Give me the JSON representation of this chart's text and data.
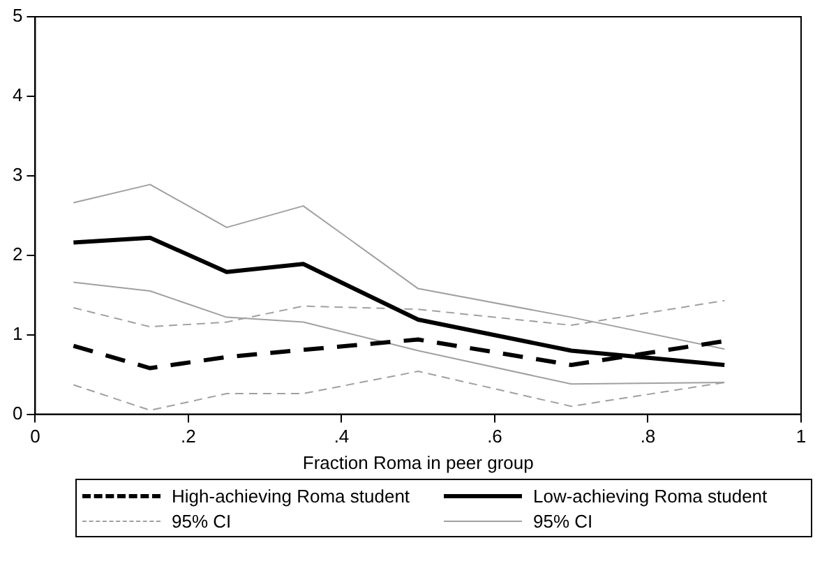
{
  "chart_data": {
    "type": "line",
    "xlabel": "Fraction Roma in peer group",
    "x": [
      0.05,
      0.15,
      0.25,
      0.35,
      0.5,
      0.7,
      0.9
    ],
    "xlim": [
      0,
      1
    ],
    "xticks": [
      0,
      {
        "value": 0.2,
        "label": ".2"
      },
      {
        "value": 0.4,
        "label": ".4"
      },
      {
        "value": 0.6,
        "label": ".6"
      },
      {
        "value": 0.8,
        "label": ".8"
      },
      1
    ],
    "ylim": [
      0,
      5
    ],
    "yticks": [
      0,
      1,
      2,
      3,
      4,
      5
    ],
    "grid": false,
    "legend": "bottom",
    "marker": "none",
    "series": [
      {
        "name": "High-achieving Roma student",
        "color": "#000000",
        "line_style": "dashed",
        "values": [
          0.86,
          0.58,
          0.72,
          0.81,
          0.94,
          0.62,
          0.92
        ]
      },
      {
        "name": "Low-achieving Roma student",
        "color": "#000000",
        "line_style": "solid",
        "values": [
          2.16,
          2.22,
          1.79,
          1.89,
          1.19,
          0.8,
          0.62
        ]
      },
      {
        "name": "95% CI",
        "color": "#a0a0a0",
        "line_style": "dashed",
        "values": [
          1.34,
          1.1,
          1.16,
          1.36,
          1.32,
          1.12,
          1.43
        ]
      },
      {
        "name": "95% CI",
        "color": "#a0a0a0",
        "line_style": "solid",
        "values": [
          2.66,
          2.89,
          2.35,
          2.62,
          1.58,
          1.22,
          0.82
        ]
      },
      {
        "color": "#a0a0a0",
        "line_style": "dashed",
        "values": [
          0.37,
          0.05,
          0.26,
          0.26,
          0.54,
          0.1,
          0.4
        ]
      },
      {
        "color": "#a0a0a0",
        "line_style": "solid",
        "values": [
          1.66,
          1.55,
          1.22,
          1.16,
          0.8,
          0.38,
          0.4
        ]
      }
    ]
  }
}
